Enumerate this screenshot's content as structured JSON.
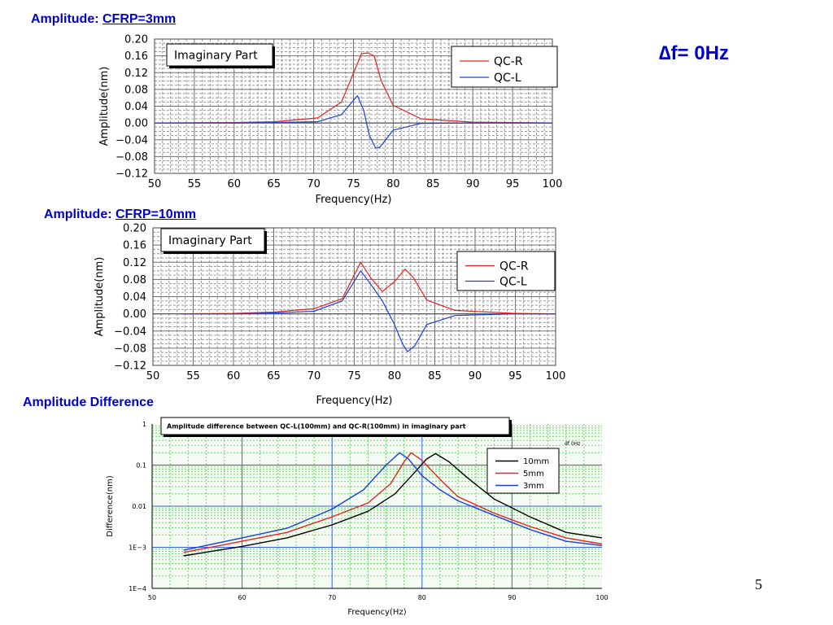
{
  "slide": {
    "heading": "∆f= 0Hz",
    "page_number": "5",
    "title_color": "#0000cc"
  },
  "sections": [
    {
      "label": "Amplitude: ",
      "emphasis": "CFRP=3mm"
    },
    {
      "label": "Amplitude: ",
      "emphasis": "CFRP=10mm"
    },
    {
      "label": "Amplitude Difference",
      "emphasis": ""
    }
  ],
  "chart_data": [
    {
      "type": "line",
      "title": "Imaginary Part",
      "xlabel": "Frequency(Hz)",
      "ylabel": "Amplitude(nm)",
      "xlim": [
        50,
        100
      ],
      "ylim": [
        -0.12,
        0.2
      ],
      "xticks": [
        50,
        55,
        60,
        65,
        70,
        75,
        80,
        85,
        90,
        95,
        100
      ],
      "yticks": [
        -0.12,
        -0.08,
        -0.04,
        0.0,
        0.04,
        0.08,
        0.12,
        0.16,
        0.2
      ],
      "ytick_labels": [
        "−0.12",
        "−0.08",
        "−0.04",
        "0.00",
        "0.04",
        "0.08",
        "0.12",
        "0.16",
        "0.20"
      ],
      "grid": true,
      "legend_position": "top-right",
      "series": [
        {
          "name": "QC-R",
          "color": "#e8231e",
          "x": [
            50,
            60,
            65,
            70.5,
            73.5,
            75.2,
            76.0,
            76.8,
            77.6,
            78.5,
            80.0,
            83.5,
            90,
            100
          ],
          "y": [
            0.0,
            0.001,
            0.003,
            0.012,
            0.05,
            0.128,
            0.165,
            0.167,
            0.16,
            0.1,
            0.042,
            0.01,
            0.002,
            0.0
          ]
        },
        {
          "name": "QC-L",
          "color": "#1a3ee0",
          "x": [
            50,
            60,
            65,
            70.5,
            73.5,
            75.5,
            76.3,
            77.0,
            77.8,
            78.3,
            80.0,
            83.5,
            90,
            100
          ],
          "y": [
            0.0,
            0.0,
            0.001,
            0.003,
            0.02,
            0.065,
            0.03,
            -0.03,
            -0.06,
            -0.058,
            -0.017,
            -0.001,
            0.0,
            0.0
          ]
        }
      ]
    },
    {
      "type": "line",
      "title": "Imaginary Part",
      "xlabel": "Frequency(Hz)",
      "ylabel": "Amplitude(nm)",
      "xlim": [
        50,
        100
      ],
      "ylim": [
        -0.12,
        0.2
      ],
      "xticks": [
        50,
        55,
        60,
        65,
        70,
        75,
        80,
        85,
        90,
        95,
        100
      ],
      "yticks": [
        -0.12,
        -0.08,
        -0.04,
        0.0,
        0.04,
        0.08,
        0.12,
        0.16,
        0.2
      ],
      "ytick_labels": [
        "−0.12",
        "−0.08",
        "−0.04",
        "0.00",
        "0.04",
        "0.08",
        "0.12",
        "0.16",
        "0.20"
      ],
      "grid": true,
      "legend_position": "right",
      "series": [
        {
          "name": "QC-R",
          "color": "#e8231e",
          "x": [
            53.5,
            60,
            65,
            70,
            73.5,
            75.8,
            77.0,
            78.5,
            80.0,
            81.3,
            82.3,
            84.0,
            87.5,
            95,
            100
          ],
          "y": [
            0.0,
            0.001,
            0.004,
            0.012,
            0.035,
            0.12,
            0.085,
            0.052,
            0.075,
            0.104,
            0.085,
            0.032,
            0.008,
            0.001,
            0.0
          ]
        },
        {
          "name": "QC-L",
          "color": "#1a3ee0",
          "x": [
            53.5,
            60,
            65,
            70,
            73.5,
            75.8,
            77.0,
            78.5,
            80.0,
            81.0,
            81.6,
            82.5,
            84.0,
            87.5,
            95,
            100
          ],
          "y": [
            0.0,
            0.0,
            0.002,
            0.006,
            0.03,
            0.1,
            0.07,
            0.03,
            -0.025,
            -0.07,
            -0.088,
            -0.075,
            -0.025,
            -0.004,
            0.0,
            0.0
          ]
        }
      ]
    },
    {
      "type": "line",
      "title": "Amplitude difference between QC-L(100mm) and QC-R(100mm) in imaginary part",
      "annotation": "df 0Hz",
      "xlabel": "Frequency(Hz)",
      "ylabel": "Difference(nm)",
      "xlim": [
        50,
        100
      ],
      "ylim": [
        0.0001,
        1
      ],
      "yscale": "log",
      "xticks": [
        50,
        60,
        70,
        80,
        90,
        100
      ],
      "yticks": [
        0.0001,
        0.001,
        0.01,
        0.1,
        1
      ],
      "ytick_labels": [
        "1E−4",
        "1E−3",
        "0.01",
        "0.1",
        "1"
      ],
      "grid": true,
      "legend_position": "top-right",
      "series": [
        {
          "name": "10mm",
          "color": "#000000",
          "x": [
            53.5,
            60,
            65,
            70,
            74,
            77,
            79,
            80.5,
            81.5,
            83,
            85,
            88,
            92,
            96,
            100
          ],
          "y": [
            0.00062,
            0.00105,
            0.0017,
            0.0035,
            0.0075,
            0.02,
            0.06,
            0.14,
            0.19,
            0.12,
            0.05,
            0.015,
            0.0055,
            0.0023,
            0.0017
          ]
        },
        {
          "name": "5mm",
          "color": "#e8231e",
          "x": [
            53.5,
            60,
            65,
            70,
            74,
            76.5,
            78,
            78.8,
            80,
            82,
            84,
            88,
            92,
            96,
            100
          ],
          "y": [
            0.00075,
            0.0014,
            0.0023,
            0.0055,
            0.012,
            0.035,
            0.12,
            0.2,
            0.13,
            0.045,
            0.017,
            0.0068,
            0.0032,
            0.0017,
            0.0012
          ]
        },
        {
          "name": "3mm",
          "color": "#1a3ee0",
          "x": [
            53.5,
            60,
            65,
            70,
            73.5,
            76,
            77.5,
            78.5,
            80,
            82,
            84,
            88,
            92,
            96,
            100
          ],
          "y": [
            0.00085,
            0.0017,
            0.0029,
            0.0085,
            0.025,
            0.1,
            0.2,
            0.14,
            0.055,
            0.025,
            0.0135,
            0.006,
            0.0027,
            0.0014,
            0.0011
          ]
        }
      ]
    }
  ]
}
